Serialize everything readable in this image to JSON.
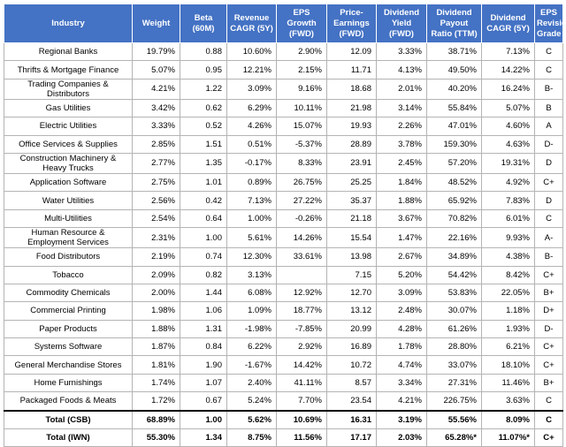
{
  "headers": [
    "Industry",
    "Weight",
    "Beta (60M)",
    "Revenue CAGR (5Y)",
    "EPS Growth (FWD)",
    "Price-Earnings (FWD)",
    "Dividend Yield (FWD)",
    "Dividend Payout Ratio (TTM)",
    "Dividend CAGR (5Y)",
    "EPS Revisions Grade"
  ],
  "rows": [
    [
      "Regional Banks",
      "19.79%",
      "0.88",
      "10.60%",
      "2.90%",
      "12.09",
      "3.33%",
      "38.71%",
      "7.13%",
      "C"
    ],
    [
      "Thrifts & Mortgage Finance",
      "5.07%",
      "0.95",
      "12.21%",
      "2.15%",
      "11.71",
      "4.13%",
      "49.50%",
      "14.22%",
      "C"
    ],
    [
      "Trading Companies & Distributors",
      "4.21%",
      "1.22",
      "3.09%",
      "9.16%",
      "18.68",
      "2.01%",
      "40.20%",
      "16.24%",
      "B-"
    ],
    [
      "Gas Utilities",
      "3.42%",
      "0.62",
      "6.29%",
      "10.11%",
      "21.98",
      "3.14%",
      "55.84%",
      "5.07%",
      "B"
    ],
    [
      "Electric Utilities",
      "3.33%",
      "0.52",
      "4.26%",
      "15.07%",
      "19.93",
      "2.26%",
      "47.01%",
      "4.60%",
      "A"
    ],
    [
      "Office Services & Supplies",
      "2.85%",
      "1.51",
      "0.51%",
      "-5.37%",
      "28.89",
      "3.78%",
      "159.30%",
      "4.63%",
      "D-"
    ],
    [
      "Construction Machinery & Heavy Trucks",
      "2.77%",
      "1.35",
      "-0.17%",
      "8.33%",
      "23.91",
      "2.45%",
      "57.20%",
      "19.31%",
      "D"
    ],
    [
      "Application Software",
      "2.75%",
      "1.01",
      "0.89%",
      "26.75%",
      "25.25",
      "1.84%",
      "48.52%",
      "4.92%",
      "C+"
    ],
    [
      "Water Utilities",
      "2.56%",
      "0.42",
      "7.13%",
      "27.22%",
      "35.37",
      "1.88%",
      "65.92%",
      "7.83%",
      "D"
    ],
    [
      "Multi-Utilities",
      "2.54%",
      "0.64",
      "1.00%",
      "-0.26%",
      "21.18",
      "3.67%",
      "70.82%",
      "6.01%",
      "C"
    ],
    [
      "Human Resource & Employment Services",
      "2.31%",
      "1.00",
      "5.61%",
      "14.26%",
      "15.54",
      "1.47%",
      "22.16%",
      "9.93%",
      "A-"
    ],
    [
      "Food Distributors",
      "2.19%",
      "0.74",
      "12.30%",
      "33.61%",
      "13.98",
      "2.67%",
      "34.89%",
      "4.38%",
      "B-"
    ],
    [
      "Tobacco",
      "2.09%",
      "0.82",
      "3.13%",
      "",
      "7.15",
      "5.20%",
      "54.42%",
      "8.42%",
      "C+"
    ],
    [
      "Commodity Chemicals",
      "2.00%",
      "1.44",
      "6.08%",
      "12.92%",
      "12.70",
      "3.09%",
      "53.83%",
      "22.05%",
      "B+"
    ],
    [
      "Commercial Printing",
      "1.98%",
      "1.06",
      "1.09%",
      "18.77%",
      "13.12",
      "2.48%",
      "30.07%",
      "1.18%",
      "D+"
    ],
    [
      "Paper Products",
      "1.88%",
      "1.31",
      "-1.98%",
      "-7.85%",
      "20.99",
      "4.28%",
      "61.26%",
      "1.93%",
      "D-"
    ],
    [
      "Systems Software",
      "1.87%",
      "0.84",
      "6.22%",
      "2.92%",
      "16.89",
      "1.78%",
      "28.80%",
      "6.21%",
      "C+"
    ],
    [
      "General Merchandise Stores",
      "1.81%",
      "1.90",
      "-1.67%",
      "14.42%",
      "10.72",
      "4.74%",
      "33.07%",
      "18.10%",
      "C+"
    ],
    [
      "Home Furnishings",
      "1.74%",
      "1.07",
      "2.40%",
      "41.11%",
      "8.57",
      "3.34%",
      "27.31%",
      "11.46%",
      "B+"
    ],
    [
      "Packaged Foods & Meats",
      "1.72%",
      "0.67",
      "5.24%",
      "7.70%",
      "23.54",
      "4.21%",
      "226.75%",
      "3.63%",
      "C"
    ]
  ],
  "totals": [
    [
      "Total (CSB)",
      "68.89%",
      "1.00",
      "5.62%",
      "10.69%",
      "16.31",
      "3.19%",
      "55.56%",
      "8.09%",
      "C"
    ],
    [
      "Total (IWN)",
      "55.30%",
      "1.34",
      "8.75%",
      "11.56%",
      "17.17",
      "2.03%",
      "65.28%*",
      "11.07%*",
      "C+"
    ]
  ]
}
